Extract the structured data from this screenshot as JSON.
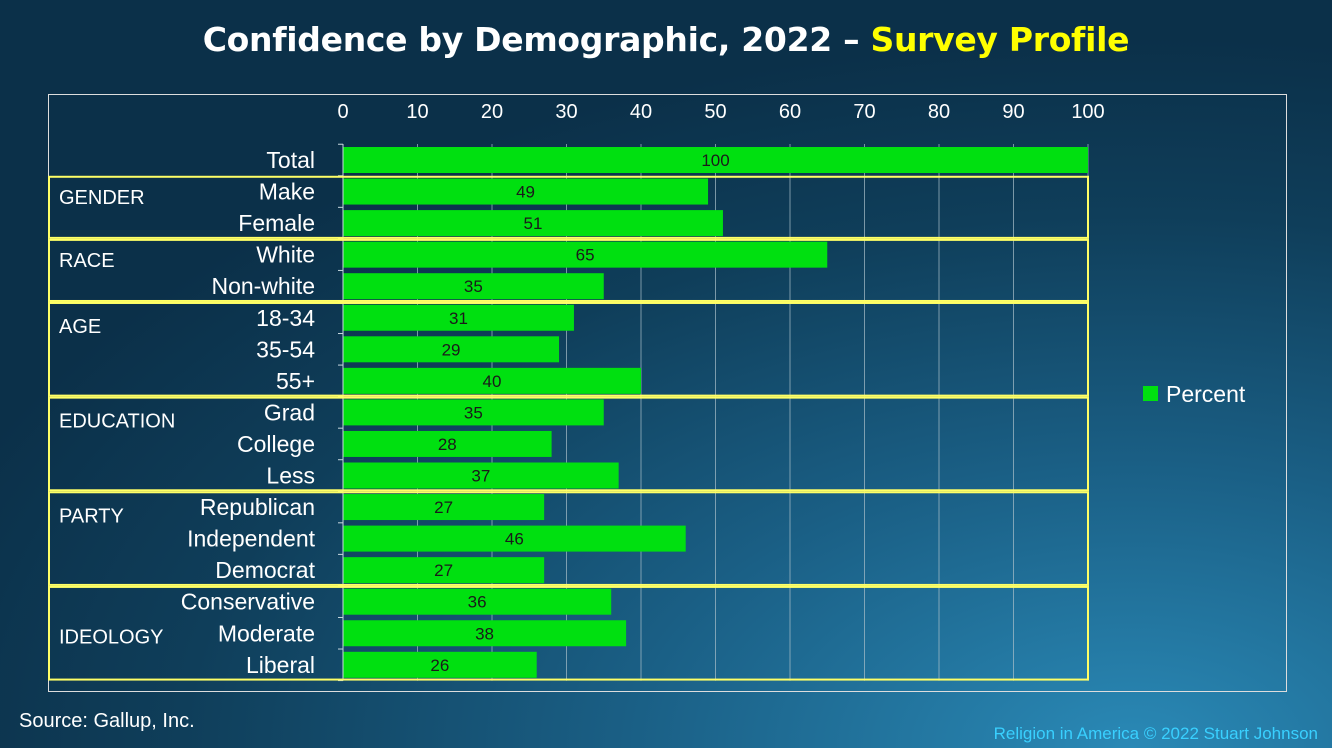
{
  "title": {
    "main": "Confidence by Demographic, 2022 – ",
    "highlight": "Survey Profile"
  },
  "source": "Source: Gallup, Inc.",
  "copyright": "Religion in America © 2022 Stuart Johnson",
  "colors": {
    "bar": "#00e010",
    "highlight": "#ffff00",
    "group_box": "#ffff66",
    "copyright": "#39d0ff"
  },
  "chart_data": {
    "type": "bar",
    "orientation": "horizontal",
    "xlim": [
      0,
      100
    ],
    "xticks": [
      0,
      10,
      20,
      30,
      40,
      50,
      60,
      70,
      80,
      90,
      100
    ],
    "axis_position": "top",
    "grid": true,
    "legend": "right",
    "series": [
      {
        "name": "Percent",
        "values": [
          100,
          49,
          51,
          65,
          35,
          31,
          29,
          40,
          35,
          28,
          37,
          27,
          46,
          27,
          36,
          38,
          26
        ]
      }
    ],
    "categories": [
      "Total",
      "Make",
      "Female",
      "White",
      "Non-white",
      "18-34",
      "35-54",
      "55+",
      "Grad",
      "College",
      "Less",
      "Republican",
      "Independent",
      "Democrat",
      "Conservative",
      "Moderate",
      "Liberal"
    ],
    "groups": [
      {
        "label": "GENDER",
        "start": 1,
        "end": 2
      },
      {
        "label": "RACE",
        "start": 3,
        "end": 4
      },
      {
        "label": "AGE",
        "start": 5,
        "end": 7
      },
      {
        "label": "EDUCATION",
        "start": 8,
        "end": 10
      },
      {
        "label": "PARTY",
        "start": 11,
        "end": 13
      },
      {
        "label": "IDEOLOGY",
        "start": 14,
        "end": 16
      }
    ]
  }
}
